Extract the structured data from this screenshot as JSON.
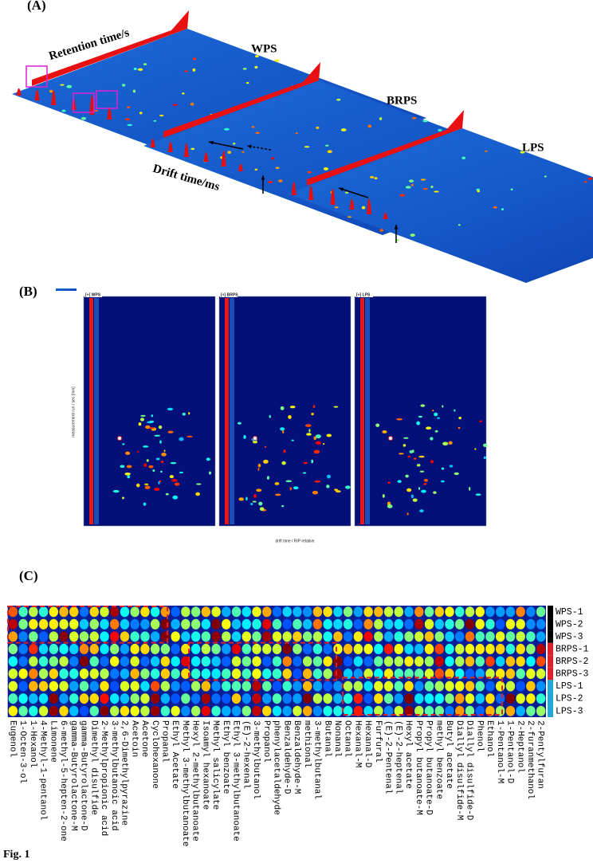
{
  "panel_a": {
    "label": "(A)",
    "retention_axis": "Retention time/s",
    "drift_axis": "Drift time/ms",
    "samples": [
      "WPS",
      "BRPS",
      "LPS"
    ]
  },
  "panel_b": {
    "label": "(B)",
    "titles": [
      "[+] WPS",
      "[+] BRPS",
      "[+] LPS"
    ],
    "x_axis_label": "drift time / RIP relative",
    "y_axis_label": "measurement run / sec [min]"
  },
  "panel_c": {
    "label": "(C)",
    "samples": [
      "WPS-1",
      "WPS-2",
      "WPS-3",
      "BRPS-1",
      "BRPS-2",
      "BRPS-3",
      "LPS-1",
      "LPS-2",
      "LPS-3"
    ],
    "compounds": [
      "Eugenol",
      "1-Octen-3-ol",
      "1-Hexanol",
      "4-Methyl-1-pentanol",
      "Limonene",
      "6-methyl-5-hepten-2-one",
      "gamma-Butyrolactone-M",
      "gamma-Butyrolactone-D",
      "Dimethyl disulfide",
      "2-Methylpropionic acid",
      "3-methylbutanoic acid",
      "2,6-Dimethylpyrazine",
      "Acetoin",
      "Acetone",
      "Cyclohexanone",
      "Propanal",
      "Ethyl Acetate",
      "Methyl 3-methylbutanoate",
      "Hexyl 2-methylbutanoate",
      "Isoamyl hexanoate",
      "Methyl salicylate",
      "Ethyl benzoate",
      "Ethyl 3-methylbutanoate",
      "(E)-2-hexenal",
      "3-methylbutanol",
      "Propanol",
      "phenylacetaldehyde",
      "Benzaldehyde-D",
      "Benzaldehyde-M",
      "methional",
      "3-methylbutanal",
      "Butanal",
      "Nonanal",
      "Octanal",
      "Hexanal-M",
      "Hexanal-D",
      "Furfural",
      "(E)-2-Pentenal",
      "(E)-2-heptenal",
      "Hexyl acetate",
      "Propyl butanoate-M",
      "Propyl butanoate-D",
      "methyl benzoate",
      "Butyl acetate",
      "Diallyl disulfide-M",
      "Diallyl disulfide-D",
      "Phenol",
      "Ethanol",
      "1-Pentanol-M",
      "1-Pentanol-D",
      "2-Heptanol",
      "2-furanmethanol",
      "2-Pentylfuran"
    ]
  },
  "caption": "Fig. 1"
}
